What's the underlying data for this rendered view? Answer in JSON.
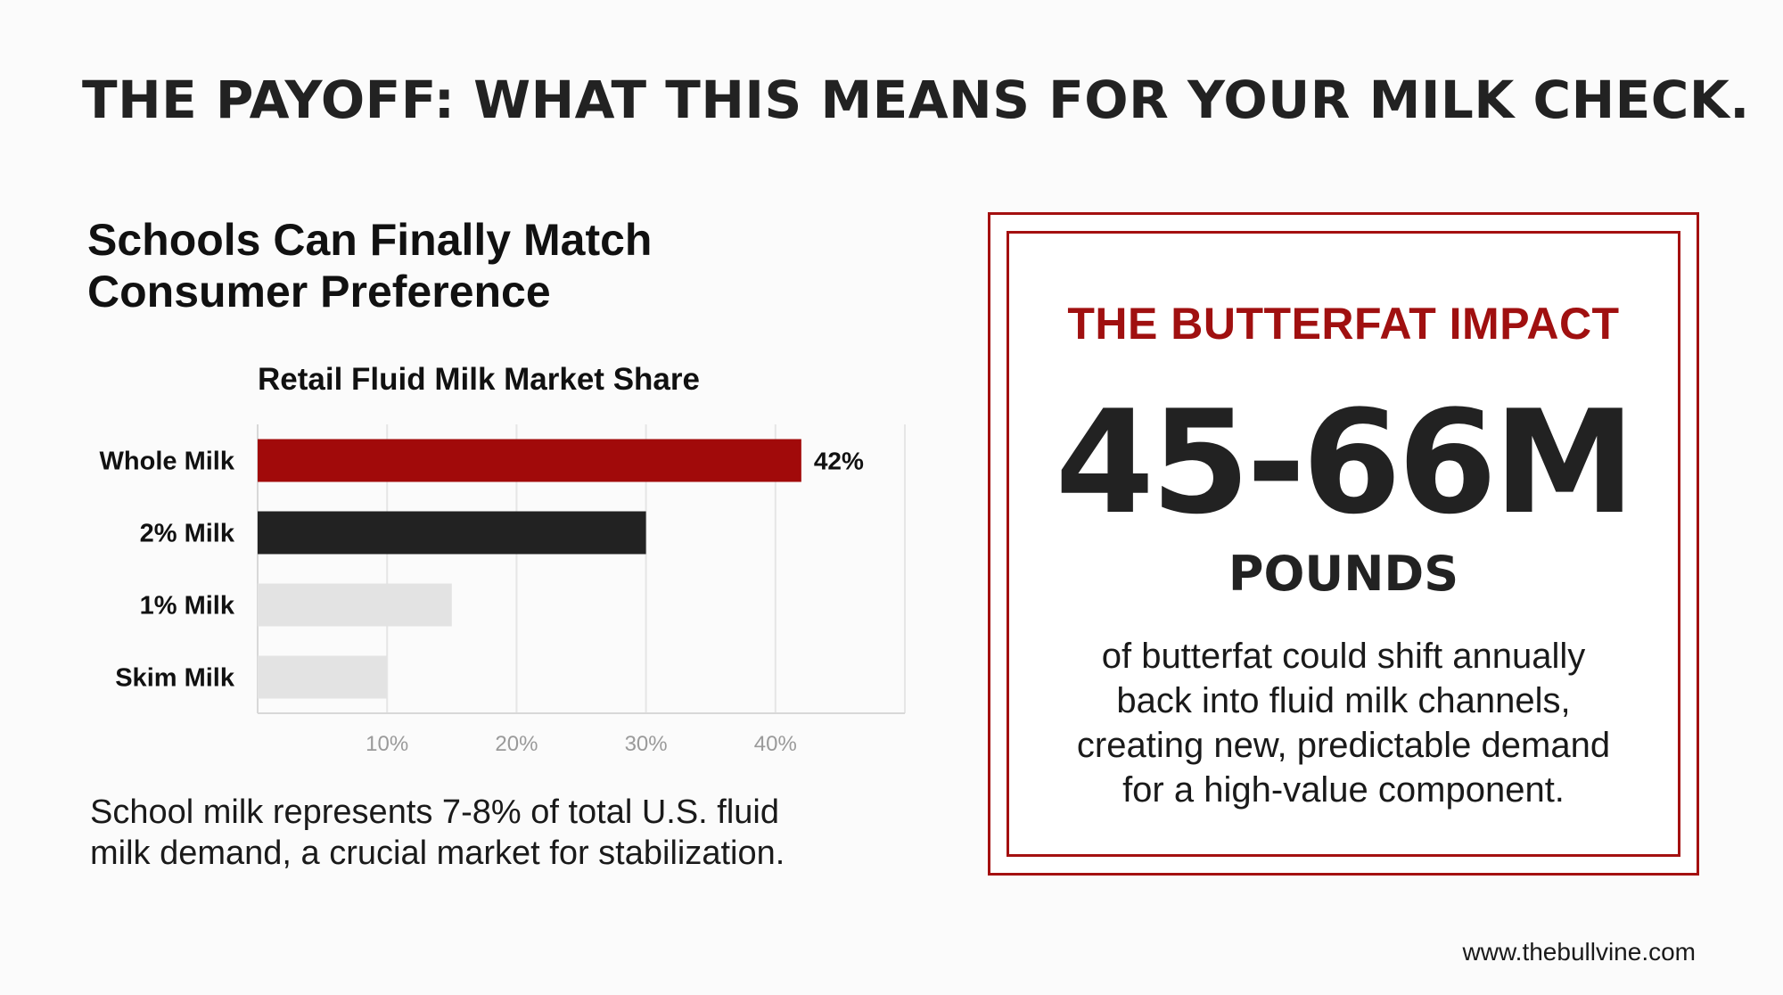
{
  "header": {
    "title": "THE PAYOFF: WHAT THIS MEANS FOR YOUR MILK CHECK."
  },
  "left_panel": {
    "heading_line1": "Schools Can Finally Match",
    "heading_line2": "Consumer Preference",
    "note_line1": "School milk represents 7-8% of total U.S. fluid",
    "note_line2": "milk demand, a crucial market for stabilization."
  },
  "chart_data": {
    "type": "bar",
    "orientation": "horizontal",
    "title": "Retail Fluid Milk Market Share",
    "categories": [
      "Whole Milk",
      "2% Milk",
      "1% Milk",
      "Skim Milk"
    ],
    "values": [
      42,
      30,
      15,
      10
    ],
    "unit": "%",
    "data_labels": [
      "42%",
      "",
      "",
      ""
    ],
    "colors": [
      "#a10a0a",
      "#222222",
      "#e3e3e3",
      "#e3e3e3"
    ],
    "x_ticks": [
      10,
      20,
      30,
      40
    ],
    "x_tick_labels": [
      "10%",
      "20%",
      "30%",
      "40%"
    ],
    "xlim": [
      0,
      50
    ],
    "grid": true,
    "xlabel": "",
    "ylabel": ""
  },
  "impact_box": {
    "title": "THE BUTTERFAT IMPACT",
    "number": "45-66M",
    "unit": "POUNDS",
    "desc_line1": "of butterfat could shift annually",
    "desc_line2": "back into fluid milk channels,",
    "desc_line3": "creating new, predictable demand",
    "desc_line4": "for a high-value component.",
    "accent_color": "#a41010"
  },
  "footer": {
    "website": "www.thebullvine.com"
  }
}
